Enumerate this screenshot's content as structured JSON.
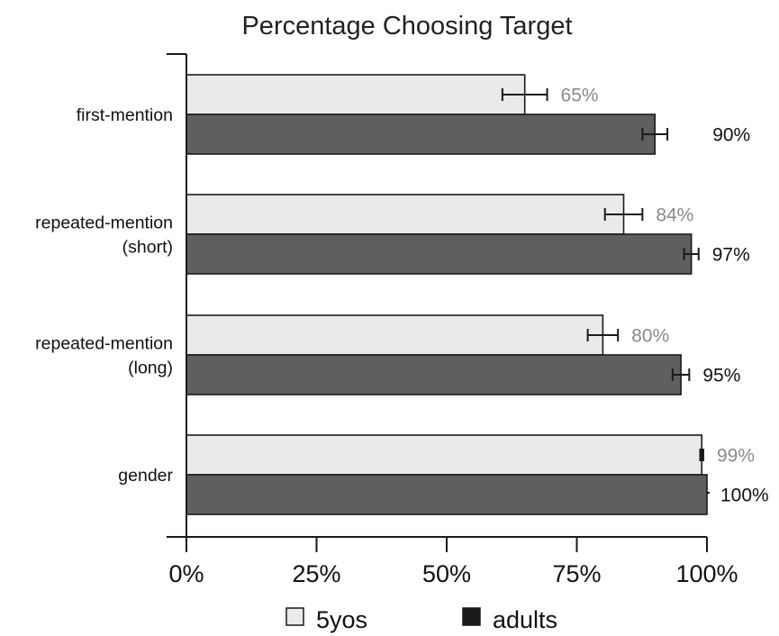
{
  "chart_data": {
    "type": "bar",
    "orientation": "horizontal",
    "title": "Percentage Choosing Target",
    "xlabel": "",
    "ylabel": "",
    "xlim": [
      0,
      100
    ],
    "x_ticks": [
      0,
      25,
      50,
      75,
      100
    ],
    "x_tick_labels": [
      "0%",
      "25%",
      "50%",
      "75%",
      "100%"
    ],
    "categories": [
      {
        "lines": [
          "first-mention"
        ]
      },
      {
        "lines": [
          "repeated-mention",
          "(short)"
        ]
      },
      {
        "lines": [
          "repeated-mention",
          "(long)"
        ]
      },
      {
        "lines": [
          "gender"
        ]
      }
    ],
    "series": [
      {
        "name": "5yos",
        "color": "#e9eaea",
        "label_color": "#8a8a8a",
        "values": [
          65,
          84,
          80,
          99
        ],
        "error": [
          4.3,
          3.6,
          2.9,
          0.3
        ],
        "labels": [
          "65%",
          "84%",
          "80%",
          "99%"
        ]
      },
      {
        "name": "adults",
        "color": "#5f5f5f",
        "label_color": "#111111",
        "values": [
          90,
          97,
          95,
          100
        ],
        "error": [
          2.4,
          1.4,
          1.6,
          0
        ],
        "labels": [
          "90%",
          "97%",
          "95%",
          "100%"
        ]
      }
    ],
    "legend": {
      "position": "bottom",
      "items": [
        {
          "label": "5yos",
          "color": "#e9eaea"
        },
        {
          "label": "adults",
          "color": "#1a1a1a"
        }
      ]
    },
    "grid": false
  }
}
